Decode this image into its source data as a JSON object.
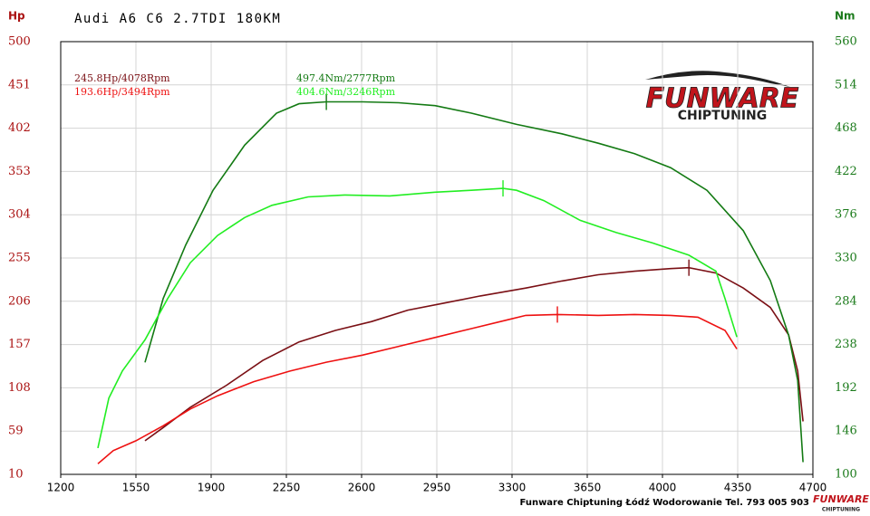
{
  "chart_data": {
    "type": "line",
    "title": "Audi A6 C6 2.7TDI 180KM",
    "ylabel": "Hp",
    "y2label": "Nm",
    "footer": "Funware Chiptuning Łódź Wodorowanie Tel. 793 005 903",
    "logo": {
      "name": "FUNWARE",
      "tagline": "CHIPTUNING"
    },
    "xlim": [
      1200,
      4700
    ],
    "xticks": [
      1200,
      1550,
      1900,
      2250,
      2600,
      2950,
      3300,
      3650,
      4000,
      4350,
      4700
    ],
    "ylim": [
      10,
      500
    ],
    "yticks": [
      10,
      59,
      108,
      157,
      206,
      255,
      304,
      353,
      402,
      451,
      500
    ],
    "y2lim": [
      100,
      560
    ],
    "y2ticks": [
      100,
      146,
      192,
      238,
      284,
      330,
      376,
      422,
      468,
      514,
      560
    ],
    "grid": true,
    "series": [
      {
        "name": "245.8Hp/4078Rpm",
        "color": "#7a0f14",
        "axis": "y",
        "x": [
          1592,
          1677,
          1803,
          1972,
          2140,
          2309,
          2478,
          2647,
          2815,
          2984,
          3153,
          3364,
          3532,
          3701,
          3870,
          4038,
          4123,
          4249,
          4376,
          4502,
          4587,
          4629,
          4654
        ],
        "values": [
          48,
          63,
          86,
          111,
          139,
          160,
          173,
          183,
          196,
          204,
          212,
          221,
          229,
          236,
          240,
          243,
          244,
          238,
          221,
          199,
          168,
          127,
          70
        ]
      },
      {
        "name": "193.6Hp/3494Rpm",
        "color": "#ee1111",
        "axis": "y",
        "x": [
          1373,
          1445,
          1550,
          1677,
          1803,
          1930,
          2098,
          2267,
          2436,
          2604,
          2773,
          2942,
          3111,
          3279,
          3364,
          3511,
          3701,
          3870,
          4038,
          4165,
          4291,
          4346
        ],
        "values": [
          22,
          37,
          48,
          65,
          84,
          99,
          115,
          127,
          137,
          145,
          155,
          165,
          175,
          185,
          190,
          191,
          190,
          191,
          190,
          188,
          173,
          152
        ]
      },
      {
        "name": "497.4Nm/2777Rpm",
        "color": "#137a13",
        "axis": "y2",
        "x": [
          1592,
          1677,
          1782,
          1909,
          2056,
          2204,
          2309,
          2436,
          2604,
          2773,
          2942,
          3111,
          3321,
          3532,
          3701,
          3870,
          4038,
          4207,
          4376,
          4502,
          4587,
          4629,
          4654
        ],
        "values": [
          219,
          287,
          344,
          402,
          450,
          484,
          494,
          496,
          496,
          495,
          492,
          484,
          472,
          462,
          452,
          441,
          426,
          402,
          359,
          306,
          248,
          200,
          113
        ]
      },
      {
        "name": "404.6Nm/3246Rpm",
        "color": "#22ee22",
        "axis": "y2",
        "x": [
          1373,
          1424,
          1487,
          1592,
          1698,
          1803,
          1930,
          2056,
          2183,
          2351,
          2520,
          2731,
          2942,
          3111,
          3258,
          3321,
          3448,
          3617,
          3785,
          3954,
          4123,
          4249,
          4291,
          4346
        ],
        "values": [
          128,
          181,
          210,
          243,
          287,
          325,
          354,
          373,
          386,
          395,
          397,
          396,
          400,
          402,
          404,
          402,
          391,
          370,
          357,
          346,
          333,
          316,
          287,
          246
        ]
      }
    ]
  }
}
